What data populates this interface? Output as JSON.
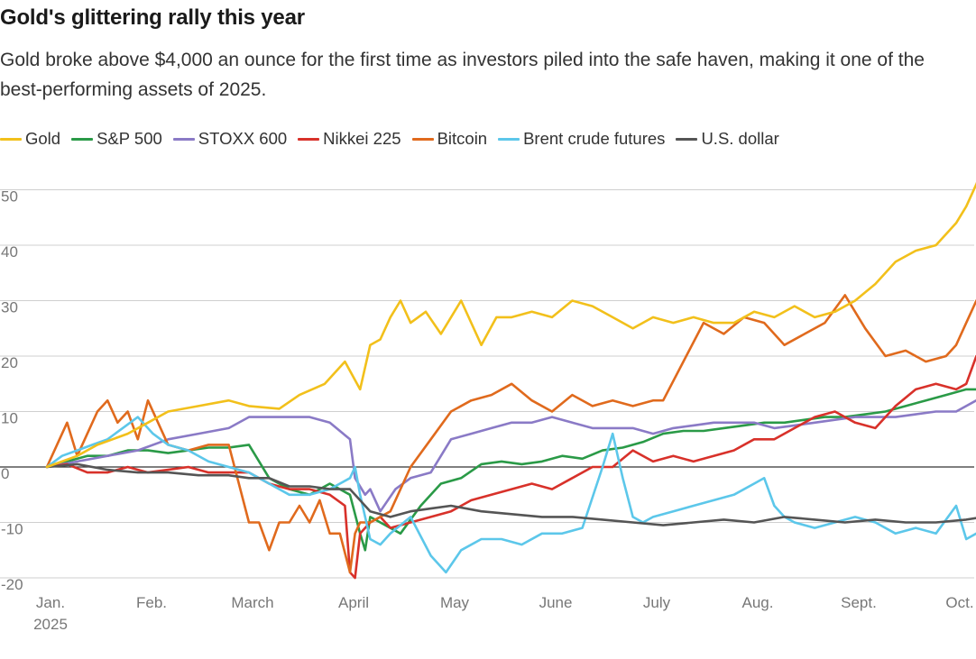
{
  "chart_data": {
    "type": "line",
    "title": "Gold's glittering rally this year",
    "subtitle": "Gold broke above $4,000 an ounce for the first time as investors piled into the safe haven, making it one of the best-performing assets of 2025.",
    "xlabel": "",
    "ylabel": "",
    "x_unit": "month index (0 = Jan. 1, 2025)",
    "xlim": [
      0,
      9.35
    ],
    "ylim": [
      -22,
      57
    ],
    "yticks": [
      "50",
      "40",
      "30",
      "20",
      "10",
      "0",
      "-10",
      "-20"
    ],
    "xticks": [
      {
        "label": "Jan.",
        "sub": "2025",
        "x": 0
      },
      {
        "label": "Feb.",
        "x": 1
      },
      {
        "label": "March",
        "x": 2
      },
      {
        "label": "April",
        "x": 3
      },
      {
        "label": "May",
        "x": 4
      },
      {
        "label": "June",
        "x": 5
      },
      {
        "label": "July",
        "x": 6
      },
      {
        "label": "Aug.",
        "x": 7
      },
      {
        "label": "Sept.",
        "x": 8
      },
      {
        "label": "Oct.",
        "x": 9
      }
    ],
    "grid": true,
    "legend_position": "top",
    "series": [
      {
        "name": "Gold",
        "color": "#f2c01b",
        "x": [
          0,
          0.3,
          0.5,
          0.8,
          1.0,
          1.2,
          1.5,
          1.8,
          2.0,
          2.3,
          2.5,
          2.75,
          2.95,
          3.1,
          3.2,
          3.3,
          3.4,
          3.5,
          3.6,
          3.75,
          3.9,
          4.1,
          4.3,
          4.45,
          4.6,
          4.8,
          5.0,
          5.2,
          5.4,
          5.6,
          5.8,
          6.0,
          6.2,
          6.4,
          6.6,
          6.8,
          7.0,
          7.2,
          7.4,
          7.6,
          7.8,
          8.0,
          8.2,
          8.4,
          8.6,
          8.8,
          9.0,
          9.1,
          9.2,
          9.27
        ],
        "values": [
          0,
          2,
          4,
          6,
          8,
          10,
          11,
          12,
          11,
          10.5,
          13,
          15,
          19,
          14,
          22,
          23,
          27,
          30,
          26,
          28,
          24,
          30,
          22,
          27,
          27,
          28,
          27,
          30,
          29,
          27,
          25,
          27,
          26,
          27,
          26,
          26,
          28,
          27,
          29,
          27,
          28,
          30,
          33,
          37,
          39,
          40,
          44,
          47,
          51,
          54
        ]
      },
      {
        "name": "S&P 500",
        "color": "#2a9a47",
        "x": [
          0,
          0.2,
          0.4,
          0.6,
          0.8,
          1.0,
          1.2,
          1.4,
          1.6,
          1.8,
          2.0,
          2.2,
          2.4,
          2.6,
          2.8,
          3.0,
          3.1,
          3.15,
          3.2,
          3.3,
          3.5,
          3.7,
          3.9,
          4.1,
          4.3,
          4.5,
          4.7,
          4.9,
          5.1,
          5.3,
          5.5,
          5.7,
          5.9,
          6.1,
          6.3,
          6.5,
          6.7,
          6.9,
          7.1,
          7.3,
          7.5,
          7.7,
          7.9,
          8.1,
          8.3,
          8.5,
          8.7,
          8.9,
          9.1,
          9.27
        ],
        "values": [
          0,
          1,
          2,
          2,
          3,
          3,
          2.5,
          3,
          3.5,
          3.5,
          4,
          -2,
          -4,
          -5,
          -3,
          -5,
          -12,
          -15,
          -9,
          -10,
          -12,
          -7,
          -3,
          -2,
          0.5,
          1,
          0.5,
          1,
          2,
          1.5,
          3,
          3.5,
          4.5,
          6,
          6.5,
          6.5,
          7,
          7.5,
          8,
          8,
          8.5,
          9,
          9,
          9.5,
          10,
          11,
          12,
          13,
          14,
          14
        ]
      },
      {
        "name": "STOXX 600",
        "color": "#8a7ac6",
        "x": [
          0,
          0.3,
          0.6,
          0.9,
          1.2,
          1.5,
          1.8,
          2.0,
          2.2,
          2.4,
          2.6,
          2.8,
          3.0,
          3.05,
          3.15,
          3.2,
          3.3,
          3.45,
          3.6,
          3.8,
          4.0,
          4.2,
          4.4,
          4.6,
          4.8,
          5.0,
          5.2,
          5.4,
          5.6,
          5.8,
          6.0,
          6.2,
          6.4,
          6.6,
          6.8,
          7.0,
          7.2,
          7.4,
          7.6,
          7.8,
          8.0,
          8.2,
          8.4,
          8.6,
          8.8,
          9.0,
          9.2,
          9.27
        ],
        "values": [
          0,
          1,
          2,
          3,
          5,
          6,
          7,
          9,
          9,
          9,
          9,
          8,
          5,
          -2,
          -5,
          -4,
          -8,
          -4,
          -2,
          -1,
          5,
          6,
          7,
          8,
          8,
          9,
          8,
          7,
          7,
          7,
          6,
          7,
          7.5,
          8,
          8,
          8,
          7,
          7.5,
          8,
          8.5,
          9,
          9,
          9,
          9.5,
          10,
          10,
          12,
          12.5
        ]
      },
      {
        "name": "Nikkei 225",
        "color": "#d8312a",
        "x": [
          0,
          0.2,
          0.4,
          0.6,
          0.8,
          1.0,
          1.2,
          1.4,
          1.6,
          1.8,
          2.0,
          2.2,
          2.4,
          2.6,
          2.8,
          2.95,
          3.0,
          3.05,
          3.1,
          3.2,
          3.3,
          3.4,
          3.6,
          3.8,
          4.0,
          4.2,
          4.4,
          4.6,
          4.8,
          5.0,
          5.2,
          5.4,
          5.6,
          5.8,
          6.0,
          6.2,
          6.4,
          6.6,
          6.8,
          7.0,
          7.2,
          7.4,
          7.6,
          7.8,
          8.0,
          8.2,
          8.4,
          8.6,
          8.8,
          9.0,
          9.1,
          9.2,
          9.27
        ],
        "values": [
          0,
          0.5,
          -1,
          -1,
          0,
          -1,
          -0.5,
          0,
          -1,
          -1,
          -1,
          -3,
          -4,
          -4,
          -5,
          -7,
          -19,
          -20,
          -12,
          -10,
          -9,
          -11,
          -10,
          -9,
          -8,
          -6,
          -5,
          -4,
          -3,
          -4,
          -2,
          0,
          0,
          3,
          1,
          2,
          1,
          2,
          3,
          5,
          5,
          7,
          9,
          10,
          8,
          7,
          11,
          14,
          15,
          14,
          15,
          20,
          21
        ]
      },
      {
        "name": "Bitcoin",
        "color": "#e06a1d",
        "x": [
          0,
          0.1,
          0.2,
          0.3,
          0.4,
          0.5,
          0.6,
          0.7,
          0.8,
          0.9,
          1.0,
          1.1,
          1.2,
          1.4,
          1.6,
          1.8,
          2.0,
          2.1,
          2.2,
          2.3,
          2.4,
          2.5,
          2.6,
          2.7,
          2.8,
          2.9,
          3.0,
          3.05,
          3.1,
          3.2,
          3.4,
          3.6,
          3.8,
          4.0,
          4.2,
          4.4,
          4.6,
          4.8,
          5.0,
          5.2,
          5.4,
          5.6,
          5.8,
          6.0,
          6.1,
          6.3,
          6.5,
          6.7,
          6.9,
          7.1,
          7.3,
          7.5,
          7.7,
          7.9,
          8.1,
          8.3,
          8.5,
          8.7,
          8.9,
          9.0,
          9.1,
          9.2,
          9.27
        ],
        "values": [
          0,
          4,
          8,
          2,
          6,
          10,
          12,
          8,
          10,
          5,
          12,
          8,
          4,
          3,
          4,
          4,
          -10,
          -10,
          -15,
          -10,
          -10,
          -7,
          -10,
          -6,
          -12,
          -12,
          -19,
          -12,
          -10,
          -10,
          -8,
          0,
          5,
          10,
          12,
          13,
          15,
          12,
          10,
          13,
          11,
          12,
          11,
          12,
          12,
          19,
          26,
          24,
          27,
          26,
          22,
          24,
          26,
          31,
          25,
          20,
          21,
          19,
          20,
          22,
          26,
          30,
          29
        ]
      },
      {
        "name": "Brent crude futures",
        "color": "#5cc7ea",
        "x": [
          0,
          0.15,
          0.3,
          0.45,
          0.6,
          0.75,
          0.9,
          1.05,
          1.2,
          1.4,
          1.6,
          1.8,
          2.0,
          2.2,
          2.4,
          2.6,
          2.8,
          3.0,
          3.05,
          3.1,
          3.2,
          3.3,
          3.4,
          3.6,
          3.8,
          3.95,
          4.1,
          4.3,
          4.5,
          4.7,
          4.9,
          5.1,
          5.3,
          5.5,
          5.6,
          5.7,
          5.8,
          5.9,
          6.0,
          6.2,
          6.4,
          6.6,
          6.8,
          7.0,
          7.1,
          7.2,
          7.3,
          7.4,
          7.6,
          7.8,
          8.0,
          8.2,
          8.4,
          8.6,
          8.8,
          9.0,
          9.1,
          9.2,
          9.27
        ],
        "values": [
          0,
          2,
          3,
          4,
          5,
          7,
          9,
          6,
          4,
          3,
          1,
          0,
          -1,
          -3,
          -5,
          -5,
          -4,
          -2,
          0,
          -5,
          -13,
          -14,
          -12,
          -9,
          -16,
          -19,
          -15,
          -13,
          -13,
          -14,
          -12,
          -12,
          -11,
          0,
          6,
          -2,
          -9,
          -10,
          -9,
          -8,
          -7,
          -6,
          -5,
          -3,
          -2,
          -7,
          -9,
          -10,
          -11,
          -10,
          -9,
          -10,
          -12,
          -11,
          -12,
          -7,
          -13,
          -12,
          -11
        ]
      },
      {
        "name": "U.S. dollar",
        "color": "#555555",
        "x": [
          0,
          0.3,
          0.6,
          0.9,
          1.2,
          1.5,
          1.8,
          2.0,
          2.2,
          2.4,
          2.6,
          2.8,
          3.0,
          3.1,
          3.2,
          3.4,
          3.6,
          3.8,
          4.0,
          4.3,
          4.6,
          4.9,
          5.2,
          5.5,
          5.8,
          6.1,
          6.4,
          6.7,
          7.0,
          7.3,
          7.6,
          7.9,
          8.2,
          8.5,
          8.8,
          9.1,
          9.27
        ],
        "values": [
          0,
          0.5,
          -0.5,
          -1,
          -1,
          -1.5,
          -1.5,
          -2,
          -2,
          -3.5,
          -3.5,
          -4,
          -4,
          -6,
          -8,
          -9,
          -8,
          -7.5,
          -7,
          -8,
          -8.5,
          -9,
          -9,
          -9.5,
          -10,
          -10.5,
          -10,
          -9.5,
          -10,
          -9,
          -9.5,
          -10,
          -9.5,
          -10,
          -10,
          -9.5,
          -9
        ]
      }
    ]
  }
}
